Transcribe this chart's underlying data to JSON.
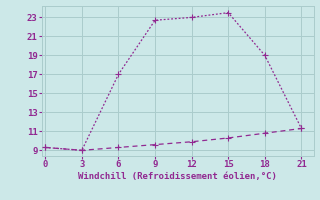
{
  "line1_x": [
    0,
    3,
    6,
    9,
    12,
    15,
    18,
    21
  ],
  "line1_y": [
    9.3,
    9.0,
    17.0,
    22.7,
    23.0,
    23.5,
    19.0,
    11.3
  ],
  "line2_x": [
    0,
    3,
    6,
    9,
    12,
    15,
    18,
    21
  ],
  "line2_y": [
    9.3,
    9.0,
    9.3,
    9.6,
    9.9,
    10.3,
    10.8,
    11.3
  ],
  "color": "#912991",
  "bg_color": "#cce8e8",
  "grid_color": "#aacccc",
  "xlabel": "Windchill (Refroidissement éolien,°C)",
  "xticks": [
    0,
    3,
    6,
    9,
    12,
    15,
    18,
    21
  ],
  "yticks": [
    9,
    11,
    13,
    15,
    17,
    19,
    21,
    23
  ],
  "xlim": [
    -0.3,
    22.0
  ],
  "ylim": [
    8.4,
    24.2
  ],
  "tick_color": "#912991",
  "markersize": 4
}
